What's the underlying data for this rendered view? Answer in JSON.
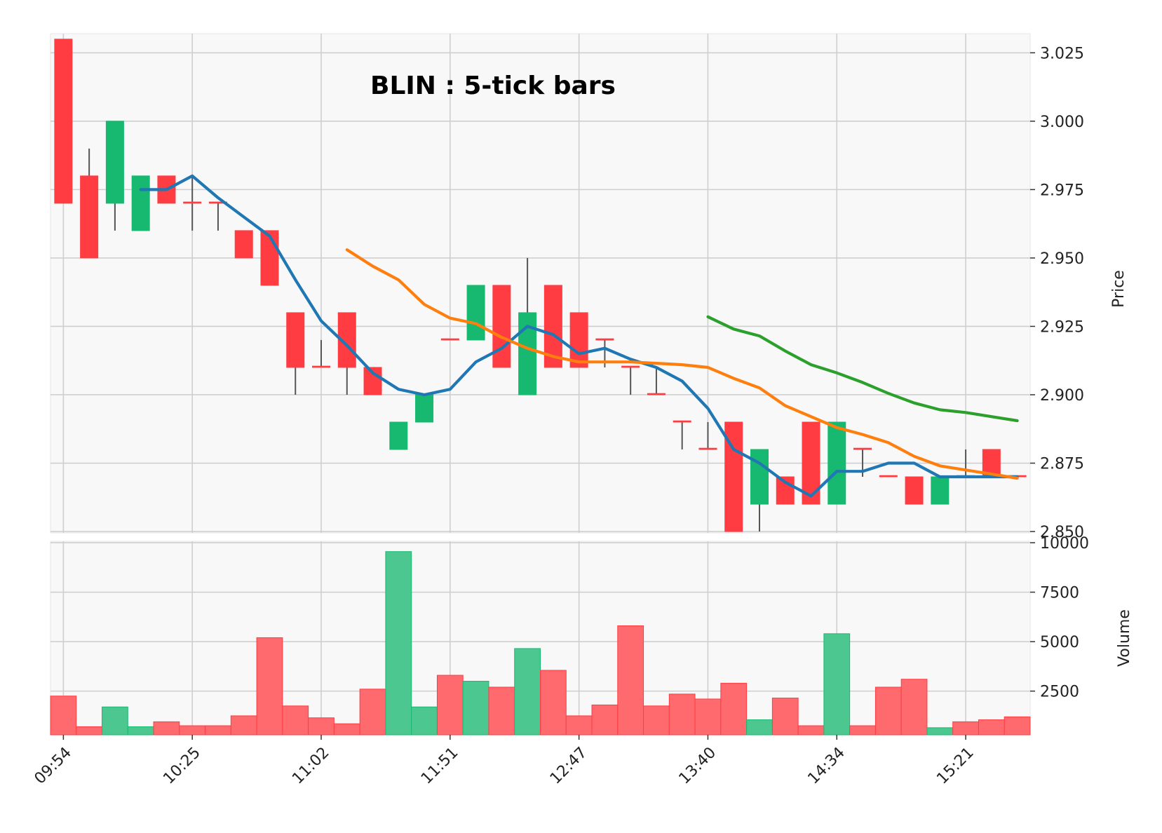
{
  "chart_data": {
    "type": "candlestick",
    "title": "BLIN : 5-tick bars",
    "price_label": "Price",
    "volume_label": "Volume",
    "price_ticks": [
      "2.850",
      "2.875",
      "2.900",
      "2.925",
      "2.950",
      "2.975",
      "3.000",
      "3.025"
    ],
    "volume_ticks": [
      "2500",
      "5000",
      "7500",
      "10000"
    ],
    "x_tick_labels": [
      {
        "index": 0,
        "label": "09:54"
      },
      {
        "index": 5,
        "label": "10:25"
      },
      {
        "index": 10,
        "label": "11:02"
      },
      {
        "index": 15,
        "label": "11:51"
      },
      {
        "index": 20,
        "label": "12:47"
      },
      {
        "index": 25,
        "label": "13:40"
      },
      {
        "index": 30,
        "label": "14:34"
      },
      {
        "index": 35,
        "label": "15:21"
      }
    ],
    "price_range": [
      2.8495,
      3.032
    ],
    "volume_range": [
      290,
      10070
    ],
    "grid": true,
    "colors": {
      "up": "#16b96f",
      "down": "#ff3c42",
      "wick": "#555555",
      "volume_up": "#4dc790",
      "volume_down": "#ff6a6f",
      "mav_short": "#1f77b4",
      "mav_mid": "#ff7f0e",
      "mav_long": "#2ca02c",
      "panel_bg": "#f8f8f8",
      "grid": "#cfcfcf"
    },
    "candles": [
      {
        "open": 3.03,
        "high": 3.03,
        "low": 2.97,
        "close": 2.97,
        "volume": 2250
      },
      {
        "open": 2.98,
        "high": 2.99,
        "low": 2.95,
        "close": 2.95,
        "volume": 700
      },
      {
        "open": 2.97,
        "high": 3.0,
        "low": 2.96,
        "close": 3.0,
        "volume": 1700
      },
      {
        "open": 2.96,
        "high": 2.98,
        "low": 2.96,
        "close": 2.98,
        "volume": 700
      },
      {
        "open": 2.98,
        "high": 2.98,
        "low": 2.97,
        "close": 2.97,
        "volume": 950
      },
      {
        "open": 2.97,
        "high": 2.98,
        "low": 2.96,
        "close": 2.97,
        "volume": 750
      },
      {
        "open": 2.97,
        "high": 2.97,
        "low": 2.96,
        "close": 2.97,
        "volume": 750
      },
      {
        "open": 2.96,
        "high": 2.96,
        "low": 2.95,
        "close": 2.95,
        "volume": 1250
      },
      {
        "open": 2.96,
        "high": 2.96,
        "low": 2.94,
        "close": 2.94,
        "volume": 5200
      },
      {
        "open": 2.93,
        "high": 2.93,
        "low": 2.9,
        "close": 2.91,
        "volume": 1750
      },
      {
        "open": 2.91,
        "high": 2.92,
        "low": 2.91,
        "close": 2.91,
        "volume": 1150
      },
      {
        "open": 2.93,
        "high": 2.93,
        "low": 2.9,
        "close": 2.91,
        "volume": 850
      },
      {
        "open": 2.91,
        "high": 2.91,
        "low": 2.9,
        "close": 2.9,
        "volume": 2600
      },
      {
        "open": 2.88,
        "high": 2.89,
        "low": 2.88,
        "close": 2.89,
        "volume": 9550
      },
      {
        "open": 2.89,
        "high": 2.9,
        "low": 2.89,
        "close": 2.9,
        "volume": 1700
      },
      {
        "open": 2.92,
        "high": 2.92,
        "low": 2.92,
        "close": 2.92,
        "volume": 3300
      },
      {
        "open": 2.92,
        "high": 2.94,
        "low": 2.92,
        "close": 2.94,
        "volume": 3000
      },
      {
        "open": 2.94,
        "high": 2.94,
        "low": 2.91,
        "close": 2.91,
        "volume": 2700
      },
      {
        "open": 2.9,
        "high": 2.95,
        "low": 2.9,
        "close": 2.93,
        "volume": 4650
      },
      {
        "open": 2.94,
        "high": 2.94,
        "low": 2.91,
        "close": 2.91,
        "volume": 3550
      },
      {
        "open": 2.93,
        "high": 2.93,
        "low": 2.91,
        "close": 2.91,
        "volume": 1250
      },
      {
        "open": 2.92,
        "high": 2.92,
        "low": 2.91,
        "close": 2.92,
        "volume": 1800
      },
      {
        "open": 2.91,
        "high": 2.91,
        "low": 2.9,
        "close": 2.91,
        "volume": 5800
      },
      {
        "open": 2.9,
        "high": 2.91,
        "low": 2.9,
        "close": 2.9,
        "volume": 1750
      },
      {
        "open": 2.89,
        "high": 2.89,
        "low": 2.88,
        "close": 2.89,
        "volume": 2350
      },
      {
        "open": 2.88,
        "high": 2.89,
        "low": 2.88,
        "close": 2.88,
        "volume": 2100
      },
      {
        "open": 2.89,
        "high": 2.89,
        "low": 2.85,
        "close": 2.85,
        "volume": 2900
      },
      {
        "open": 2.86,
        "high": 2.88,
        "low": 2.85,
        "close": 2.88,
        "volume": 1050
      },
      {
        "open": 2.87,
        "high": 2.87,
        "low": 2.86,
        "close": 2.86,
        "volume": 2150
      },
      {
        "open": 2.89,
        "high": 2.89,
        "low": 2.86,
        "close": 2.86,
        "volume": 750
      },
      {
        "open": 2.86,
        "high": 2.89,
        "low": 2.86,
        "close": 2.89,
        "volume": 5400
      },
      {
        "open": 2.88,
        "high": 2.88,
        "low": 2.87,
        "close": 2.88,
        "volume": 750
      },
      {
        "open": 2.87,
        "high": 2.87,
        "low": 2.87,
        "close": 2.87,
        "volume": 2700
      },
      {
        "open": 2.87,
        "high": 2.87,
        "low": 2.86,
        "close": 2.86,
        "volume": 3100
      },
      {
        "open": 2.86,
        "high": 2.87,
        "low": 2.86,
        "close": 2.87,
        "volume": 650
      },
      {
        "open": 2.87,
        "high": 2.88,
        "low": 2.87,
        "close": 2.87,
        "volume": 950
      },
      {
        "open": 2.88,
        "high": 2.88,
        "low": 2.87,
        "close": 2.87,
        "volume": 1050
      },
      {
        "open": 2.87,
        "high": 2.87,
        "low": 2.87,
        "close": 2.87,
        "volume": 1200
      }
    ],
    "moving_averages": [
      {
        "key": "mav_short",
        "values": [
          null,
          null,
          null,
          2.975,
          2.975,
          2.98,
          2.972,
          2.965,
          2.958,
          2.942,
          2.927,
          2.918,
          2.908,
          2.902,
          2.9,
          2.902,
          2.912,
          2.917,
          2.925,
          2.922,
          2.915,
          2.917,
          2.913,
          2.91,
          2.905,
          2.895,
          2.88,
          2.875,
          2.868,
          2.863,
          2.872,
          2.872,
          2.875,
          2.875,
          2.87,
          2.87,
          2.87,
          2.87
        ]
      },
      {
        "key": "mav_mid",
        "values": [
          null,
          null,
          null,
          null,
          null,
          null,
          null,
          null,
          null,
          null,
          null,
          2.953,
          2.947,
          2.942,
          2.933,
          2.928,
          2.926,
          2.921,
          2.917,
          2.914,
          2.912,
          2.912,
          2.912,
          2.9115,
          2.911,
          2.91,
          2.906,
          2.9025,
          2.896,
          2.892,
          2.888,
          2.8855,
          2.8825,
          2.8775,
          2.874,
          2.8725,
          2.871,
          2.8695
        ]
      },
      {
        "key": "mav_long",
        "values": [
          null,
          null,
          null,
          null,
          null,
          null,
          null,
          null,
          null,
          null,
          null,
          null,
          null,
          null,
          null,
          null,
          null,
          null,
          null,
          null,
          null,
          null,
          null,
          null,
          null,
          2.9285,
          2.924,
          2.9215,
          2.916,
          2.911,
          2.908,
          2.9045,
          2.9005,
          2.897,
          2.8945,
          2.8935,
          2.892,
          2.8905
        ]
      }
    ]
  }
}
